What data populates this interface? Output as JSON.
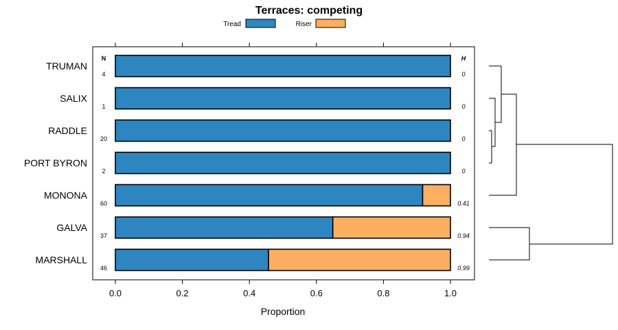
{
  "chart_data": {
    "type": "bar",
    "orientation": "horizontal",
    "stacked": true,
    "title": "Terraces: competing",
    "xlabel": "Proportion",
    "ylabel": "",
    "xlim": [
      -0.07,
      1.07
    ],
    "x_ticks": [
      "0.0",
      "0.2",
      "0.4",
      "0.6",
      "0.8",
      "1.0"
    ],
    "x_tick_values": [
      0,
      0.2,
      0.4,
      0.6,
      0.8,
      1.0
    ],
    "n_header": "N",
    "h_header": "H",
    "legend": {
      "position": "top-center",
      "entries": [
        "Tread",
        "Riser"
      ]
    },
    "categories": [
      "TRUMAN",
      "SALIX",
      "RADDLE",
      "PORT BYRON",
      "MONONA",
      "GALVA",
      "MARSHALL"
    ],
    "n_values": [
      "4",
      "1",
      "20",
      "2",
      "60",
      "37",
      "46"
    ],
    "h_values": [
      "0",
      "0",
      "0",
      "0",
      "0.41",
      "0.94",
      "0.99"
    ],
    "series": [
      {
        "name": "Tread",
        "color": "#2e86c1",
        "values": [
          1.0,
          1.0,
          1.0,
          1.0,
          0.917,
          0.649,
          0.457
        ]
      },
      {
        "name": "Riser",
        "color": "#fdae61",
        "values": [
          0.0,
          0.0,
          0.0,
          0.0,
          0.083,
          0.351,
          0.543
        ]
      }
    ],
    "dendrogram": {
      "merges": [
        {
          "left": "SALIX",
          "right": "RADDLE/PORT BYRON",
          "level": 0.1
        },
        {
          "left": "RADDLE",
          "right": "PORT BYRON",
          "level": 0.05
        },
        {
          "left": "TRUMAN",
          "right": "SALIX/RADDLE/PORT BYRON",
          "level": 0.2
        },
        {
          "left": "TRUMAN-cluster",
          "right": "MONONA",
          "level": 0.5
        },
        {
          "left": "GALVA",
          "right": "MARSHALL",
          "level": 0.75
        },
        {
          "left": "upper-cluster",
          "right": "GALVA/MARSHALL",
          "level": 2.3
        }
      ]
    }
  }
}
